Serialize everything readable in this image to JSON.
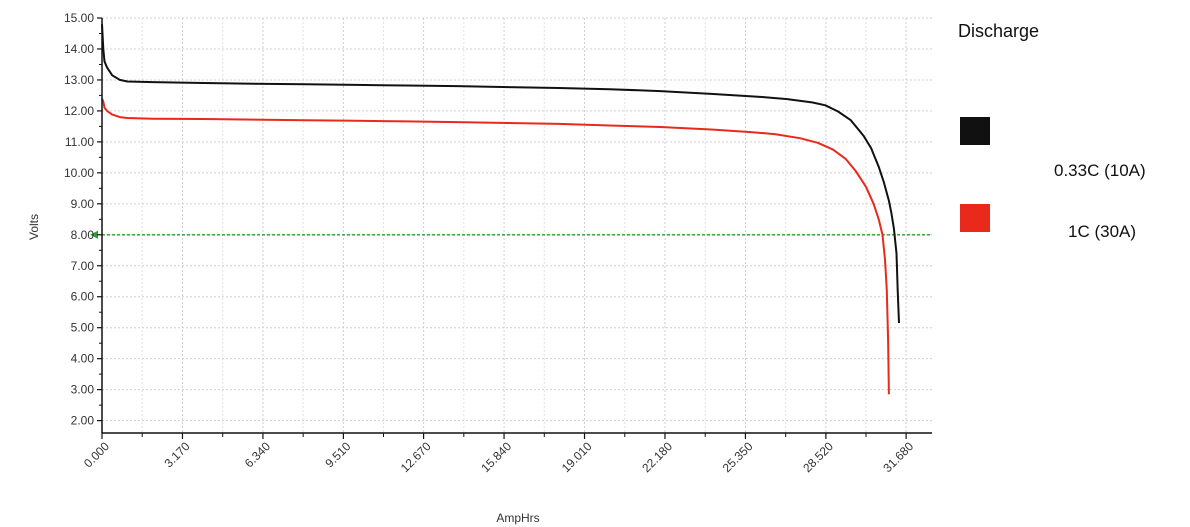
{
  "chart_data": {
    "type": "line",
    "title": "",
    "xlabel": "AmpHrs",
    "ylabel": "Volts",
    "xlim": [
      0,
      32.7
    ],
    "ylim": [
      1.6,
      15.0
    ],
    "x_ticks": [
      "0.000",
      "3.170",
      "6.340",
      "9.510",
      "12.670",
      "15.840",
      "19.010",
      "22.180",
      "25.350",
      "28.520",
      "31.680"
    ],
    "x_tick_values": [
      0,
      3.17,
      6.34,
      9.51,
      12.67,
      15.84,
      19.01,
      22.18,
      25.35,
      28.52,
      31.68
    ],
    "y_ticks": [
      "2.00",
      "3.00",
      "4.00",
      "5.00",
      "6.00",
      "7.00",
      "8.00",
      "9.00",
      "10.00",
      "11.00",
      "12.00",
      "13.00",
      "14.00",
      "15.00"
    ],
    "y_tick_values": [
      2,
      3,
      4,
      5,
      6,
      7,
      8,
      9,
      10,
      11,
      12,
      13,
      14,
      15
    ],
    "grid": true,
    "reference_line": {
      "y": 8.0,
      "color": "#2e9e2e"
    },
    "legend": {
      "title": "Discharge",
      "placement": "right"
    },
    "series": [
      {
        "name": "0.33C (10A)",
        "color": "#111111",
        "x": [
          0,
          0.05,
          0.1,
          0.2,
          0.4,
          0.7,
          1.0,
          2,
          4,
          6,
          8,
          10,
          12,
          14,
          16,
          18,
          20,
          22,
          24,
          26,
          27,
          28,
          28.5,
          29,
          29.5,
          30,
          30.3,
          30.6,
          30.8,
          31.0,
          31.1,
          31.2,
          31.3,
          31.35,
          31.4
        ],
        "y": [
          14.8,
          14.0,
          13.6,
          13.4,
          13.15,
          13.0,
          12.95,
          12.93,
          12.9,
          12.88,
          12.86,
          12.84,
          12.82,
          12.8,
          12.77,
          12.74,
          12.7,
          12.64,
          12.55,
          12.45,
          12.38,
          12.27,
          12.18,
          11.98,
          11.7,
          11.2,
          10.8,
          10.2,
          9.7,
          9.1,
          8.7,
          8.2,
          7.4,
          6.2,
          5.15
        ]
      },
      {
        "name": "1C (30A)",
        "color": "#e8291c",
        "x": [
          0,
          0.05,
          0.1,
          0.2,
          0.4,
          0.7,
          1.0,
          2,
          4,
          6,
          8,
          10,
          12,
          14,
          16,
          18,
          20,
          22,
          24,
          25.5,
          26.5,
          27.5,
          28.2,
          28.8,
          29.3,
          29.7,
          30.1,
          30.4,
          30.6,
          30.75,
          30.85,
          30.92,
          30.97,
          31.0
        ],
        "y": [
          12.4,
          12.3,
          12.1,
          12.0,
          11.88,
          11.8,
          11.77,
          11.75,
          11.74,
          11.72,
          11.7,
          11.68,
          11.66,
          11.64,
          11.61,
          11.58,
          11.53,
          11.48,
          11.4,
          11.32,
          11.25,
          11.12,
          10.97,
          10.75,
          10.45,
          10.05,
          9.55,
          9.0,
          8.5,
          8.0,
          7.2,
          6.2,
          4.6,
          2.85
        ]
      }
    ]
  },
  "legend_items": [
    {
      "label": "0.33C (10A)",
      "color": "#111111"
    },
    {
      "label": "1C (30A)",
      "color": "#e8291c"
    }
  ]
}
